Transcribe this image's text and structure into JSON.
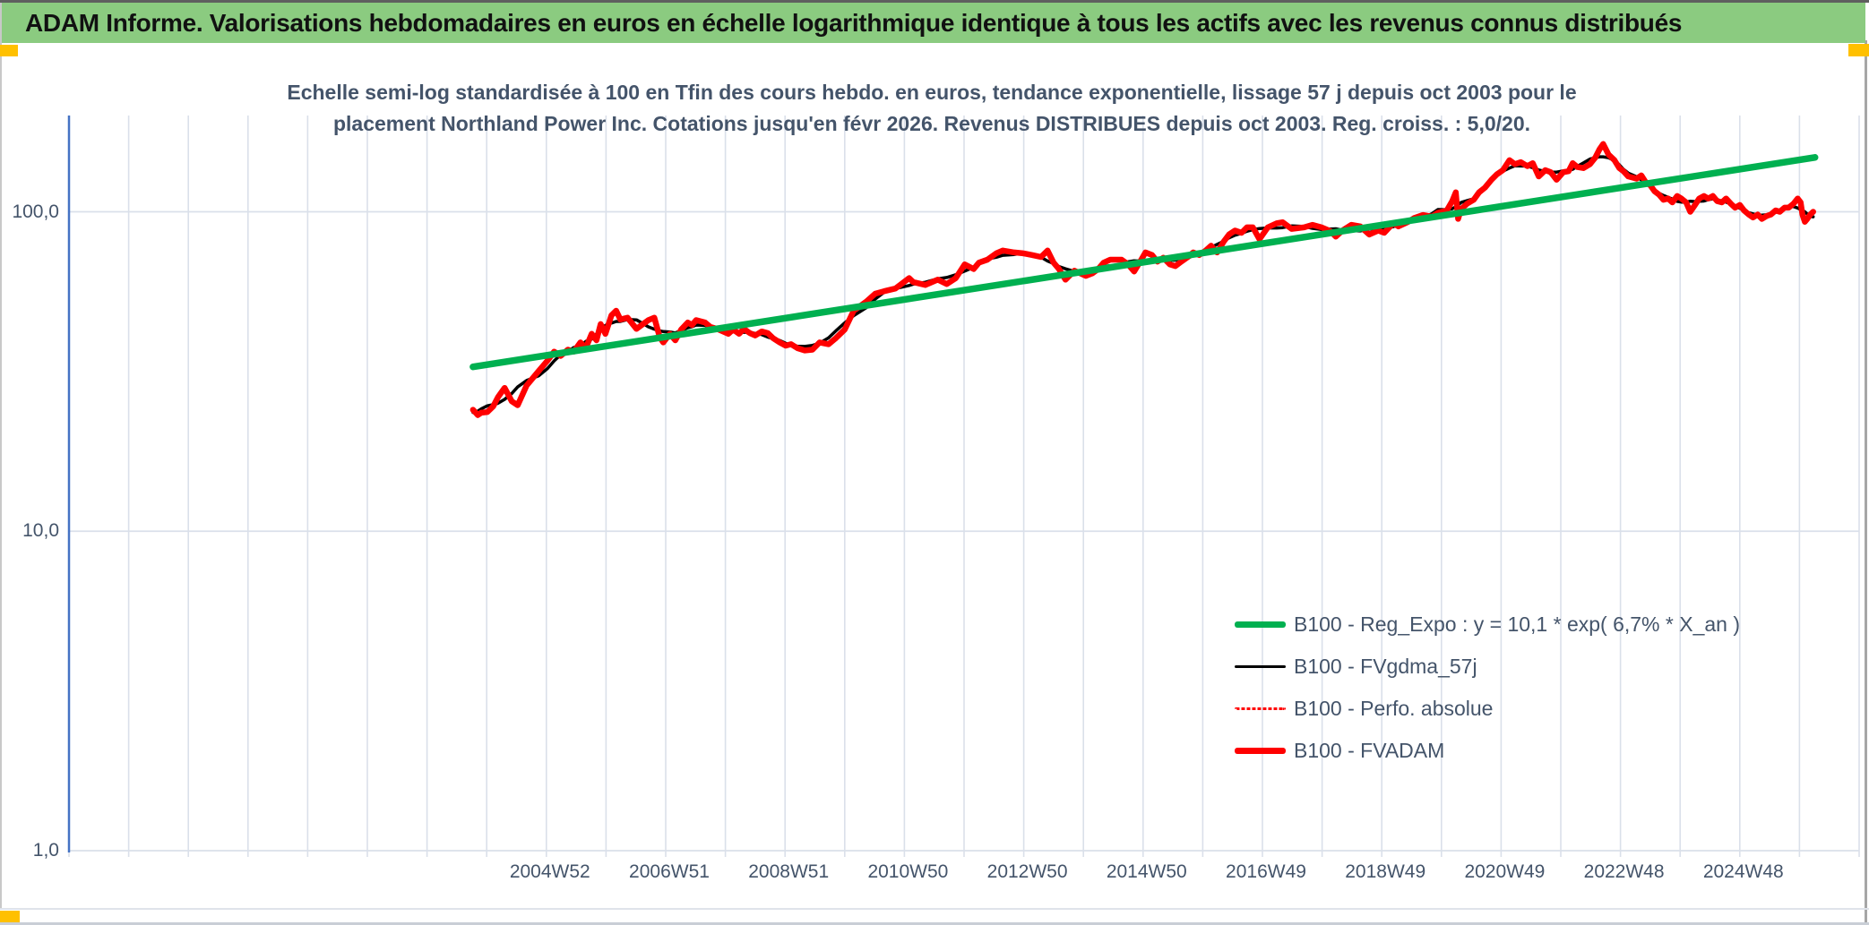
{
  "banner": {
    "title": "ADAM Informe. Valorisations hebdomadaires en euros en échelle logarithmique identique à tous les actifs avec les revenus connus distribués"
  },
  "colors": {
    "banner_bg": "#8BCB80",
    "accent_yellow": "#FFC000",
    "axis_line": "#4472C4",
    "gridline": "#DAE0EA",
    "text_navy": "#44546A",
    "reg_expo_green": "#00B050",
    "fvadam_red": "#FF0000",
    "fvgdma_black": "#000000"
  },
  "chart_data": {
    "type": "line",
    "title_lines": [
      "Echelle semi-log standardisée à 100 en Tfin des cours hebdo. en euros, tendance exponentielle, lissage 57 j depuis oct 2003 pour le",
      "placement Northland Power Inc. Cotations jusqu'en févr 2026. Revenus DISTRIBUES depuis oct 2003. Reg. croiss. : 5,0/20."
    ],
    "y_axis": {
      "scale": "log",
      "range": [
        1,
        200
      ],
      "label_ticks": [
        {
          "value": 100,
          "label": "100,0"
        },
        {
          "value": 10,
          "label": "10,0"
        },
        {
          "value": 1,
          "label": "1,0"
        }
      ]
    },
    "x_axis": {
      "range_years": [
        1996.94,
        2026.94
      ],
      "gridline_step_years": 1,
      "ticks": [
        {
          "year": 2005,
          "label": "2004W52"
        },
        {
          "year": 2007,
          "label": "2006W51"
        },
        {
          "year": 2009,
          "label": "2008W51"
        },
        {
          "year": 2011,
          "label": "2010W50"
        },
        {
          "year": 2013,
          "label": "2012W50"
        },
        {
          "year": 2015,
          "label": "2014W50"
        },
        {
          "year": 2017,
          "label": "2016W49"
        },
        {
          "year": 2019,
          "label": "2018W49"
        },
        {
          "year": 2021,
          "label": "2020W49"
        },
        {
          "year": 2023,
          "label": "2022W48"
        },
        {
          "year": 2025,
          "label": "2024W48"
        }
      ]
    },
    "legend": [
      {
        "label": "B100 - Reg_Expo : y = 10,1 * exp( 6,7% *  X_an )",
        "color": "#00B050",
        "style": "thick"
      },
      {
        "label": "B100 - FVgdma_57j",
        "color": "#000000",
        "style": "thin"
      },
      {
        "label": "B100 - Perfo. absolue",
        "color": "#FF0000",
        "style": "dotted"
      },
      {
        "label": "B100 - FVADAM",
        "color": "#FF0000",
        "style": "thick"
      }
    ],
    "series": [
      {
        "name": "B100 - Reg_Expo",
        "color": "#00B050",
        "style": "thick",
        "points": [
          [
            2003.71,
            32.7
          ],
          [
            2026.2,
            148.0
          ]
        ]
      },
      {
        "name": "B100 - FVgdma_57j",
        "color": "#000000",
        "style": "thin",
        "derived_from": "B100 - FVADAM",
        "smooth_window": 7
      },
      {
        "name": "B100 - Perfo. absolue",
        "color": "#FF0000",
        "style": "dotted",
        "derived_from": "B100 - FVADAM"
      },
      {
        "name": "B100 - FVADAM",
        "color": "#FF0000",
        "style": "thick",
        "points": [
          [
            2003.71,
            24.0
          ],
          [
            2003.79,
            23.1
          ],
          [
            2003.85,
            23.5
          ],
          [
            2003.95,
            23.6
          ],
          [
            2004.05,
            24.6
          ],
          [
            2004.13,
            26.3
          ],
          [
            2004.24,
            28.1
          ],
          [
            2004.36,
            25.5
          ],
          [
            2004.46,
            24.8
          ],
          [
            2004.61,
            28.6
          ],
          [
            2004.81,
            31.7
          ],
          [
            2004.96,
            34.2
          ],
          [
            2005.07,
            36.5
          ],
          [
            2005.18,
            35.4
          ],
          [
            2005.3,
            37.0
          ],
          [
            2005.4,
            36.5
          ],
          [
            2005.51,
            39.0
          ],
          [
            2005.6,
            37.5
          ],
          [
            2005.7,
            41.5
          ],
          [
            2005.78,
            39.6
          ],
          [
            2005.85,
            44.5
          ],
          [
            2005.93,
            41.5
          ],
          [
            2006.03,
            47.4
          ],
          [
            2006.11,
            49.0
          ],
          [
            2006.18,
            46.0
          ],
          [
            2006.3,
            46.6
          ],
          [
            2006.45,
            43.0
          ],
          [
            2006.56,
            44.5
          ],
          [
            2006.65,
            45.8
          ],
          [
            2006.75,
            46.6
          ],
          [
            2006.84,
            40.5
          ],
          [
            2006.9,
            39.0
          ],
          [
            2007.01,
            41.5
          ],
          [
            2007.1,
            39.6
          ],
          [
            2007.2,
            42.8
          ],
          [
            2007.31,
            45.0
          ],
          [
            2007.38,
            44.2
          ],
          [
            2007.45,
            45.8
          ],
          [
            2007.6,
            45.0
          ],
          [
            2007.69,
            43.6
          ],
          [
            2007.8,
            43.0
          ],
          [
            2007.9,
            42.2
          ],
          [
            2007.99,
            41.5
          ],
          [
            2008.07,
            42.8
          ],
          [
            2008.17,
            41.5
          ],
          [
            2008.25,
            43.0
          ],
          [
            2008.35,
            41.7
          ],
          [
            2008.44,
            41.0
          ],
          [
            2008.55,
            42.2
          ],
          [
            2008.65,
            41.7
          ],
          [
            2008.74,
            40.2
          ],
          [
            2008.85,
            39.0
          ],
          [
            2008.95,
            38.1
          ],
          [
            2009.04,
            38.5
          ],
          [
            2009.15,
            37.4
          ],
          [
            2009.27,
            36.8
          ],
          [
            2009.4,
            37.0
          ],
          [
            2009.52,
            39.0
          ],
          [
            2009.67,
            38.5
          ],
          [
            2009.79,
            40.2
          ],
          [
            2009.94,
            42.8
          ],
          [
            2010.09,
            49.0
          ],
          [
            2010.3,
            52.3
          ],
          [
            2010.45,
            55.4
          ],
          [
            2010.6,
            56.4
          ],
          [
            2010.79,
            57.5
          ],
          [
            2011.02,
            62.0
          ],
          [
            2011.09,
            60.2
          ],
          [
            2011.29,
            59.0
          ],
          [
            2011.5,
            61.3
          ],
          [
            2011.65,
            59.4
          ],
          [
            2011.8,
            62.0
          ],
          [
            2011.95,
            68.4
          ],
          [
            2012.1,
            66.2
          ],
          [
            2012.19,
            69.3
          ],
          [
            2012.33,
            70.8
          ],
          [
            2012.48,
            74.1
          ],
          [
            2012.59,
            75.6
          ],
          [
            2012.78,
            74.6
          ],
          [
            2012.93,
            74.1
          ],
          [
            2013.08,
            73.2
          ],
          [
            2013.23,
            72.2
          ],
          [
            2013.34,
            75.6
          ],
          [
            2013.44,
            69.3
          ],
          [
            2013.53,
            66.2
          ],
          [
            2013.64,
            61.3
          ],
          [
            2013.79,
            65.4
          ],
          [
            2013.98,
            63.0
          ],
          [
            2014.09,
            64.2
          ],
          [
            2014.19,
            66.2
          ],
          [
            2014.28,
            69.3
          ],
          [
            2014.39,
            70.8
          ],
          [
            2014.58,
            70.8
          ],
          [
            2014.69,
            68.4
          ],
          [
            2014.79,
            65.0
          ],
          [
            2014.88,
            69.3
          ],
          [
            2014.98,
            74.6
          ],
          [
            2015.09,
            73.2
          ],
          [
            2015.18,
            69.8
          ],
          [
            2015.28,
            71.8
          ],
          [
            2015.39,
            68.4
          ],
          [
            2015.48,
            67.6
          ],
          [
            2015.58,
            69.8
          ],
          [
            2015.69,
            72.2
          ],
          [
            2015.78,
            74.6
          ],
          [
            2015.88,
            73.2
          ],
          [
            2015.99,
            75.6
          ],
          [
            2016.08,
            78.3
          ],
          [
            2016.18,
            74.6
          ],
          [
            2016.29,
            80.6
          ],
          [
            2016.38,
            84.9
          ],
          [
            2016.48,
            87.3
          ],
          [
            2016.59,
            85.9
          ],
          [
            2016.68,
            89.4
          ],
          [
            2016.78,
            89.4
          ],
          [
            2016.89,
            82.0
          ],
          [
            2017.03,
            89.4
          ],
          [
            2017.18,
            92.1
          ],
          [
            2017.28,
            92.7
          ],
          [
            2017.43,
            88.4
          ],
          [
            2017.64,
            89.4
          ],
          [
            2017.78,
            91.0
          ],
          [
            2017.93,
            89.4
          ],
          [
            2018.08,
            87.0
          ],
          [
            2018.17,
            83.6
          ],
          [
            2018.28,
            87.3
          ],
          [
            2018.43,
            91.0
          ],
          [
            2018.58,
            90.0
          ],
          [
            2018.73,
            84.9
          ],
          [
            2018.88,
            87.3
          ],
          [
            2018.98,
            85.9
          ],
          [
            2019.13,
            92.1
          ],
          [
            2019.22,
            90.0
          ],
          [
            2019.37,
            92.7
          ],
          [
            2019.48,
            95.5
          ],
          [
            2019.63,
            97.7
          ],
          [
            2019.78,
            96.5
          ],
          [
            2019.88,
            99.3
          ],
          [
            2020.03,
            101.0
          ],
          [
            2020.12,
            108.0
          ],
          [
            2020.18,
            115.0
          ],
          [
            2020.22,
            95.0
          ],
          [
            2020.27,
            102.0
          ],
          [
            2020.37,
            106.0
          ],
          [
            2020.48,
            109.0
          ],
          [
            2020.57,
            115.0
          ],
          [
            2020.67,
            119.0
          ],
          [
            2020.78,
            126.0
          ],
          [
            2020.87,
            131.0
          ],
          [
            2020.97,
            135.0
          ],
          [
            2021.08,
            145.0
          ],
          [
            2021.17,
            141.0
          ],
          [
            2021.27,
            143.0
          ],
          [
            2021.38,
            139.0
          ],
          [
            2021.47,
            142.0
          ],
          [
            2021.57,
            129.0
          ],
          [
            2021.68,
            135.0
          ],
          [
            2021.77,
            133.0
          ],
          [
            2021.87,
            126.0
          ],
          [
            2021.98,
            133.0
          ],
          [
            2022.07,
            134.0
          ],
          [
            2022.14,
            142.0
          ],
          [
            2022.22,
            138.0
          ],
          [
            2022.32,
            137.0
          ],
          [
            2022.43,
            141.0
          ],
          [
            2022.52,
            148.0
          ],
          [
            2022.59,
            157.0
          ],
          [
            2022.65,
            163.0
          ],
          [
            2022.74,
            151.0
          ],
          [
            2022.84,
            145.0
          ],
          [
            2022.92,
            137.0
          ],
          [
            2022.99,
            134.0
          ],
          [
            2023.07,
            129.0
          ],
          [
            2023.21,
            127.0
          ],
          [
            2023.29,
            130.0
          ],
          [
            2023.36,
            124.0
          ],
          [
            2023.44,
            121.0
          ],
          [
            2023.51,
            116.0
          ],
          [
            2023.59,
            113.0
          ],
          [
            2023.66,
            109.0
          ],
          [
            2023.74,
            110.0
          ],
          [
            2023.81,
            107.0
          ],
          [
            2023.89,
            112.0
          ],
          [
            2023.96,
            110.0
          ],
          [
            2024.04,
            107.0
          ],
          [
            2024.11,
            100.0
          ],
          [
            2024.19,
            105.0
          ],
          [
            2024.26,
            110.0
          ],
          [
            2024.34,
            112.0
          ],
          [
            2024.41,
            110.0
          ],
          [
            2024.49,
            112.0
          ],
          [
            2024.56,
            108.0
          ],
          [
            2024.64,
            107.0
          ],
          [
            2024.71,
            110.0
          ],
          [
            2024.79,
            106.0
          ],
          [
            2024.86,
            103.0
          ],
          [
            2024.94,
            105.0
          ],
          [
            2025.01,
            101.0
          ],
          [
            2025.09,
            98.0
          ],
          [
            2025.16,
            96.0
          ],
          [
            2025.24,
            98.0
          ],
          [
            2025.31,
            95.0
          ],
          [
            2025.39,
            97.0
          ],
          [
            2025.46,
            98.0
          ],
          [
            2025.54,
            101.0
          ],
          [
            2025.61,
            100.0
          ],
          [
            2025.69,
            103.0
          ],
          [
            2025.76,
            103.0
          ],
          [
            2025.84,
            106.0
          ],
          [
            2025.91,
            110.0
          ],
          [
            2025.96,
            107.0
          ],
          [
            2025.99,
            98.0
          ],
          [
            2026.03,
            93.0
          ],
          [
            2026.07,
            95.0
          ],
          [
            2026.12,
            98.0
          ],
          [
            2026.17,
            100.0
          ]
        ]
      }
    ]
  }
}
